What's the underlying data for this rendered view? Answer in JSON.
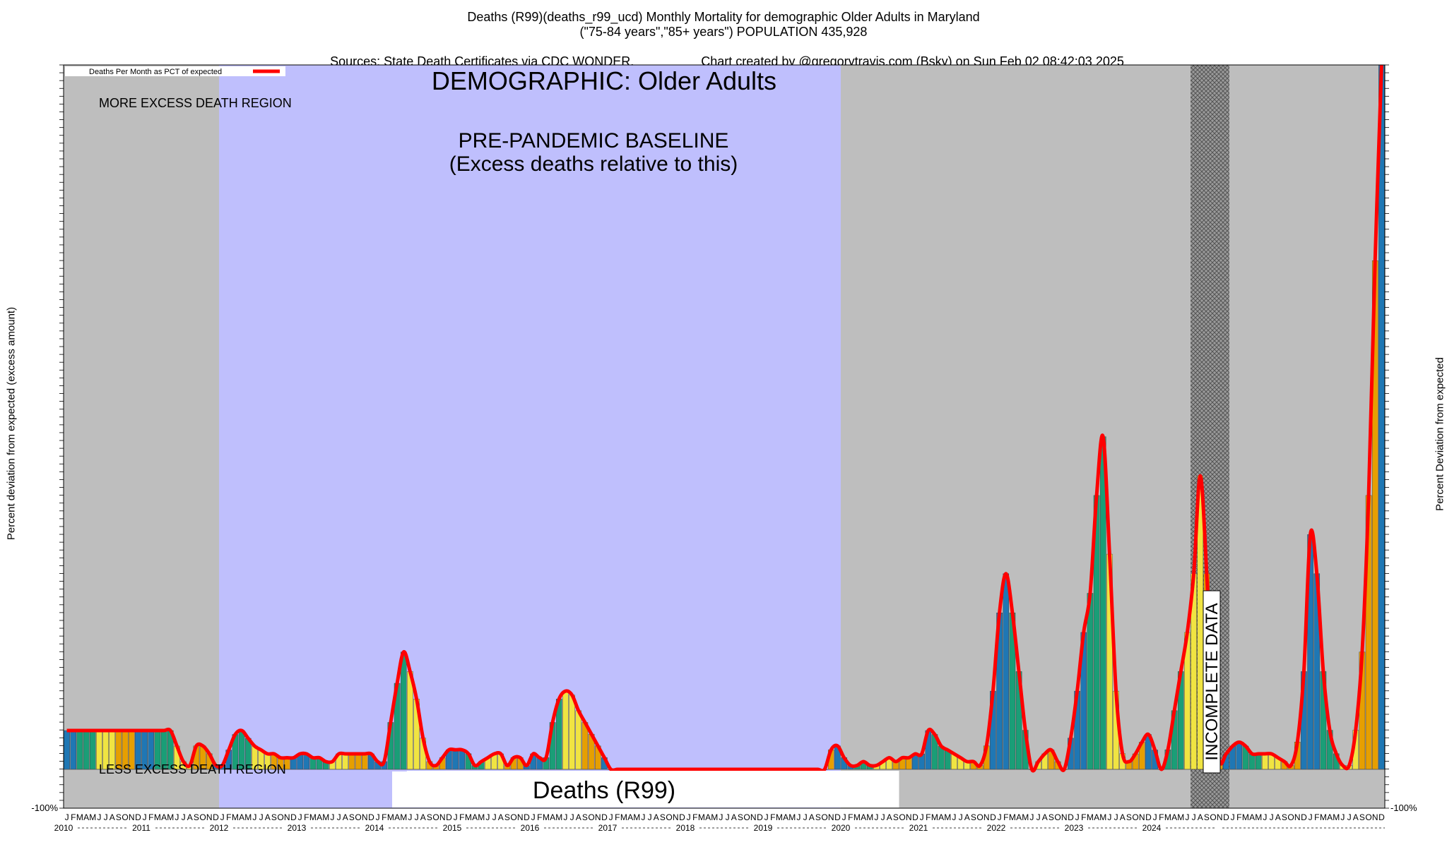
{
  "header": {
    "line1": "Deaths (R99)(deaths_r99_ucd) Monthly Mortality for demographic Older Adults in Maryland",
    "line2": "(\"75-84 years\",\"85+ years\") POPULATION 435,928",
    "line3_left": "Sources: State Death Certificates via CDC WONDER.",
    "line3_right": "Chart created by @gregorytravis.com (Bsky) on Sun Feb 02 08:42:03 2025"
  },
  "chart_data": {
    "type": "bar",
    "title": "DEMOGRAPHIC: Older Adults",
    "baseline_label_1": "PRE-PANDEMIC BASELINE",
    "baseline_label_2": "(Excess deaths relative to this)",
    "more_region_label": "MORE EXCESS DEATH REGION",
    "less_region_label": "LESS EXCESS DEATH REGION",
    "metric_label": "Deaths (R99)",
    "incomplete_label": "INCOMPLETE DATA",
    "legend": "Deaths Per Month as PCT of expected",
    "ylabel_left": "Percent deviation from expected (excess amount)",
    "ylabel_right": "Percent Deviation from expected",
    "y_bottom_tick": "-100%",
    "month_letters": [
      "J",
      "F",
      "M",
      "A",
      "M",
      "J",
      "J",
      "A",
      "S",
      "O",
      "N",
      "D"
    ],
    "years": [
      "2010",
      "2011",
      "2012",
      "2013",
      "2014",
      "2015",
      "2016",
      "2017",
      "2018",
      "2019",
      "2020",
      "2021",
      "2022",
      "2023",
      "2024"
    ],
    "start": "2010-01",
    "ylim": [
      -100,
      1800
    ],
    "baseline_period": [
      "2012-01",
      "2019-12"
    ],
    "incomplete_period": [
      "2024-07",
      "2024-12"
    ],
    "colors": {
      "grey_region": "#bebebe",
      "baseline_region": "#bfbffd",
      "line": "#ff0000",
      "bar_blue": "#1f77b4",
      "bar_green": "#1a9e77",
      "bar_yellow": "#f0e442",
      "bar_orange": "#e69f00"
    },
    "values": [
      -100,
      -100,
      -100,
      -100,
      -100,
      -100,
      -100,
      -100,
      -100,
      -100,
      -100,
      -100,
      -100,
      -100,
      -100,
      -100,
      -100,
      -60,
      -20,
      10,
      60,
      60,
      40,
      10,
      -10,
      -50,
      -90,
      -100,
      -80,
      -60,
      -50,
      -40,
      -40,
      -30,
      -30,
      -30,
      -40,
      -40,
      -30,
      -30,
      -20,
      -20,
      -40,
      -40,
      -40,
      -40,
      -40,
      -40,
      -20,
      20,
      120,
      220,
      300,
      250,
      180,
      80,
      20,
      -10,
      30,
      50,
      50,
      50,
      40,
      -10,
      -20,
      -30,
      -40,
      -40,
      10,
      30,
      30,
      -10,
      -40,
      -30,
      30,
      120,
      180,
      200,
      190,
      150,
      120,
      90,
      60,
      30,
      0,
      0,
      0,
      0,
      0,
      0,
      0,
      0,
      0,
      0,
      0,
      0,
      0,
      0,
      0,
      0,
      0,
      0,
      0,
      0,
      0,
      0,
      0,
      0,
      0,
      0,
      0,
      0,
      0,
      0,
      0,
      0,
      0,
      0,
      50,
      60,
      30,
      10,
      -10,
      -20,
      -10,
      -10,
      -20,
      -30,
      -20,
      -30,
      -30,
      -40,
      -40,
      -100,
      -90,
      -60,
      -50,
      -40,
      -30,
      -20,
      -20,
      -10,
      60,
      200,
      400,
      500,
      400,
      250,
      100,
      0,
      -20,
      -40,
      -50,
      -20,
      0,
      80,
      200,
      350,
      450,
      700,
      850,
      550,
      200,
      40,
      -20,
      -40,
      -70,
      -90,
      -50,
      0,
      50,
      150,
      250,
      350,
      500,
      750,
      500,
      150,
      -20,
      -40,
      -60,
      -70,
      -60,
      -40,
      -40,
      -40,
      -40,
      -30,
      -20,
      -10,
      70,
      250,
      600,
      500,
      250,
      100,
      40,
      10,
      -10,
      100,
      300,
      700,
      1300,
      1800
    ]
  }
}
